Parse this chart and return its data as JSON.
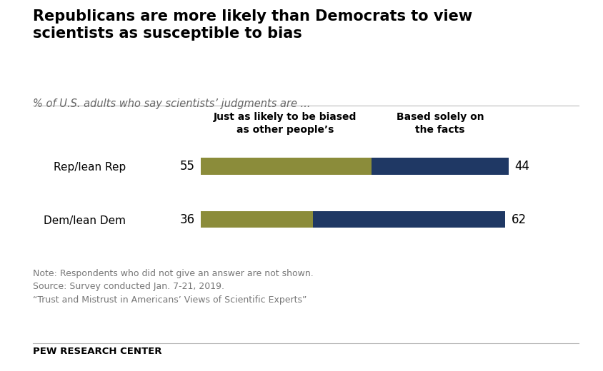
{
  "title": "Republicans are more likely than Democrats to view\nscientists as susceptible to bias",
  "subtitle": "% of U.S. adults who say scientists’ judgments are ...",
  "categories": [
    "Rep/lean Rep",
    "Dem/lean Dem"
  ],
  "col1_label": "Just as likely to be biased\nas other people’s",
  "col2_label": "Based solely on\nthe facts",
  "col1_values": [
    55,
    36
  ],
  "col2_values": [
    44,
    62
  ],
  "color_olive": "#8B8C3A",
  "color_navy": "#1F3864",
  "note_lines": [
    "Note: Respondents who did not give an answer are not shown.",
    "Source: Survey conducted Jan. 7-21, 2019.",
    "“Trust and Mistrust in Americans’ Views of Scientific Experts”"
  ],
  "footer": "PEW RESEARCH CENTER",
  "background_color": "#FFFFFF",
  "bar_height": 0.32
}
